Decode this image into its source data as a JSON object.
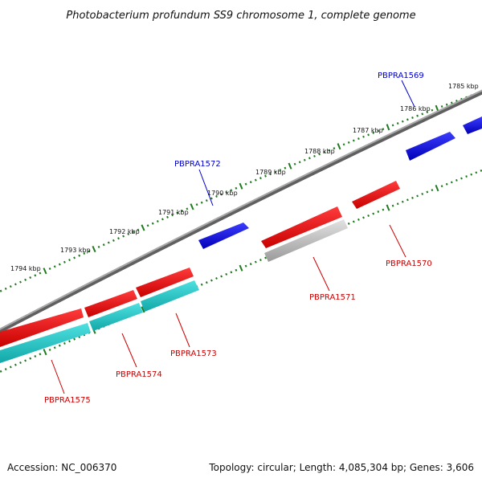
{
  "title": "Photobacterium profundum SS9 chromosome 1, complete genome",
  "footer": {
    "accession": "Accession: NC_006370",
    "summary": "Topology: circular; Length: 4,085,304 bp; Genes: 3,606"
  },
  "scale_labels": [
    "1785 kbp",
    "1786 kbp",
    "1787 kbp",
    "1788 kbp",
    "1789 kbp",
    "1790 kbp",
    "1791 kbp",
    "1792 kbp",
    "1793 kbp",
    "1794 kbp"
  ],
  "genes": [
    {
      "id": "PBPRA1569",
      "strand": "forward",
      "color": "#0000dd"
    },
    {
      "id": "PBPRA1570",
      "strand": "reverse",
      "color": "#cc0000"
    },
    {
      "id": "PBPRA1571",
      "strand": "reverse",
      "color": "#cc0000"
    },
    {
      "id": "PBPRA1572",
      "strand": "forward",
      "color": "#0000dd"
    },
    {
      "id": "PBPRA1573",
      "strand": "reverse",
      "color": "#cc0000"
    },
    {
      "id": "PBPRA1574",
      "strand": "reverse",
      "color": "#cc0000"
    },
    {
      "id": "PBPRA1575",
      "strand": "reverse",
      "color": "#cc0000"
    }
  ],
  "colors": {
    "forward_gene": "#0000dd",
    "reverse_gene": "#ee1111",
    "gene_label_forward": "#0000cc",
    "gene_label_reverse": "#cc0000",
    "backbone": "#808080",
    "tick": "#1f7a1f",
    "rna_feature": "#20c8c8",
    "grey_feature": "#b4b4b4"
  }
}
